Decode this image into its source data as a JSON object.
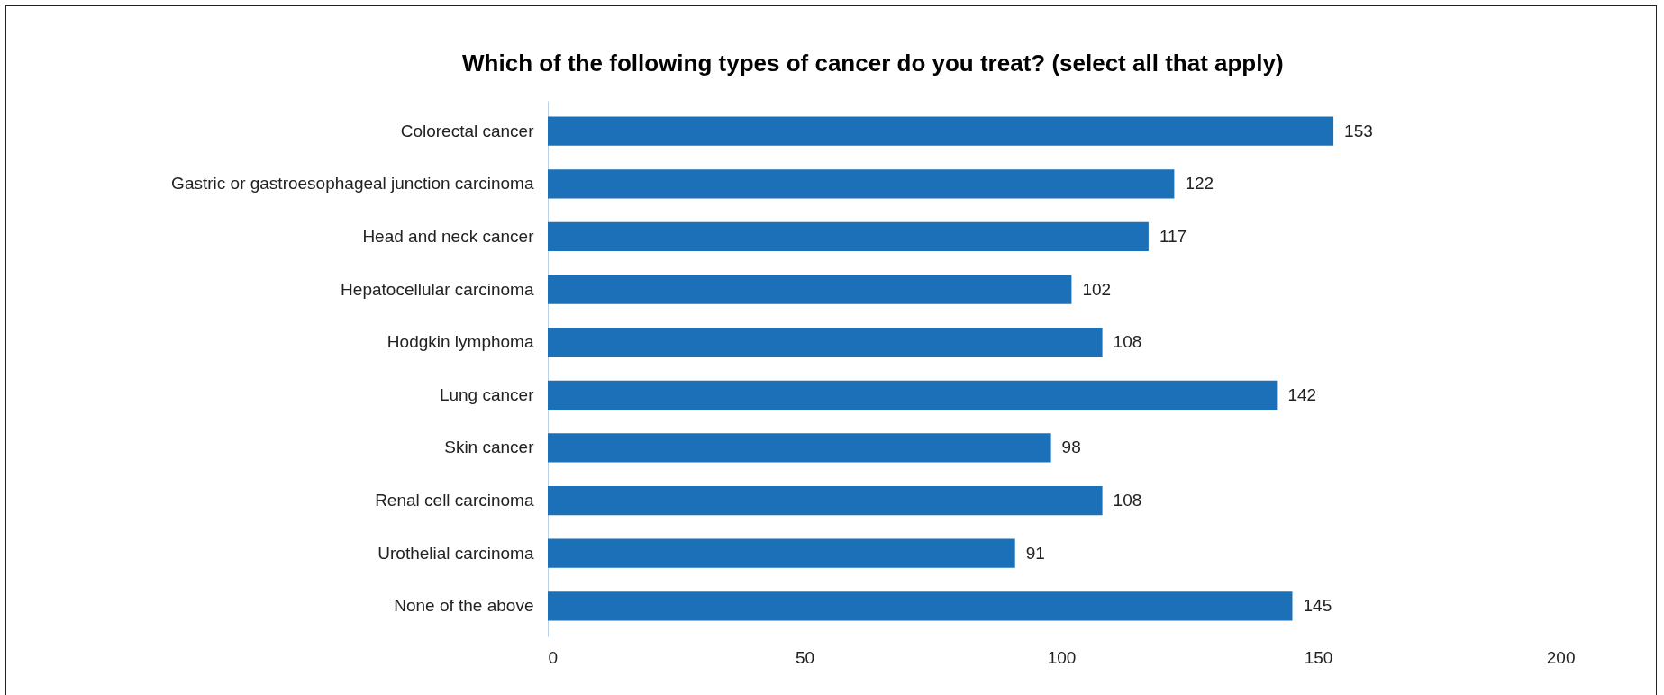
{
  "chart_data": {
    "type": "bar",
    "orientation": "horizontal",
    "title": "Which of the following types of cancer do you treat? (select all that apply)",
    "categories": [
      "Colorectal cancer",
      "Gastric or gastroesophageal junction carcinoma",
      "Head and neck cancer",
      "Hepatocellular carcinoma",
      "Hodgkin lymphoma",
      "Lung cancer",
      "Skin cancer",
      "Renal cell carcinoma",
      "Urothelial carcinoma",
      "None of the above"
    ],
    "values": [
      153,
      122,
      117,
      102,
      108,
      142,
      98,
      108,
      91,
      145
    ],
    "color": "#1b70b8",
    "xlim": [
      0,
      200
    ],
    "xticks": [
      0,
      50,
      100,
      150,
      200
    ],
    "grid": false,
    "data_labels": true
  }
}
